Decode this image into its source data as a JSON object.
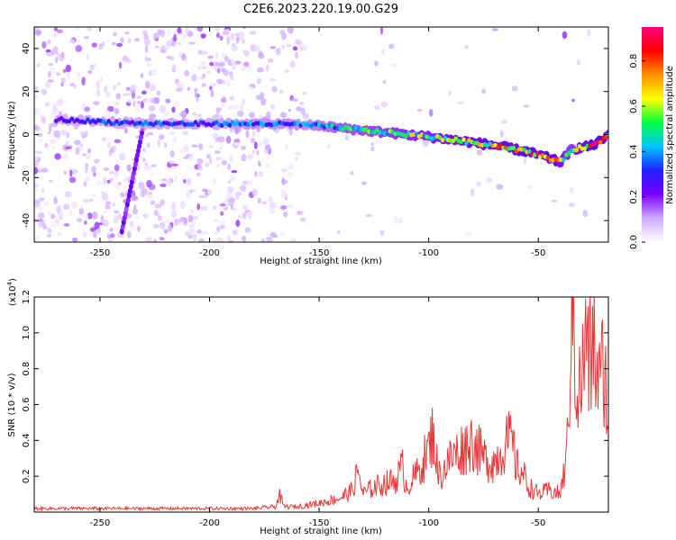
{
  "title": "C2E6.2023.220.19.00.G29",
  "chart_data": [
    {
      "type": "heatmap",
      "xlabel": "Height of straight line (km)",
      "ylabel": "Frequency (Hz)",
      "xlim": [
        -280,
        -18
      ],
      "ylim": [
        -50,
        50
      ],
      "xticks": [
        -250,
        -200,
        -150,
        -100,
        -50
      ],
      "yticks": [
        -40,
        -20,
        0,
        20,
        40
      ],
      "colorbar": {
        "label": "Normalized spectral amplitude",
        "range": [
          0.0,
          0.95
        ],
        "ticks": [
          0.0,
          0.2,
          0.4,
          0.6,
          0.8
        ],
        "colors": [
          "#ffffff",
          "#cfa8ff",
          "#7a00ff",
          "#2020ff",
          "#00c8ff",
          "#00ff40",
          "#ffff00",
          "#ff9000",
          "#ff0000",
          "#ff0080"
        ]
      },
      "ridge": {
        "x": [
          -270,
          -250,
          -225,
          -200,
          -175,
          -155,
          -140,
          -120,
          -100,
          -85,
          -70,
          -55,
          -45,
          -40,
          -35,
          -30,
          -25,
          -20,
          -18
        ],
        "freq_hz": [
          7,
          6,
          5,
          5,
          5,
          4.5,
          3,
          1,
          -1,
          -3,
          -5,
          -8,
          -11,
          -13,
          -7,
          -6,
          -5,
          -2,
          0
        ],
        "amplitude": [
          0.25,
          0.3,
          0.3,
          0.3,
          0.35,
          0.35,
          0.45,
          0.5,
          0.55,
          0.6,
          0.65,
          0.7,
          0.75,
          0.6,
          0.5,
          0.6,
          0.8,
          0.7,
          0.6
        ]
      },
      "diagonal_streak": {
        "x": [
          -240,
          -230
        ],
        "freq_hz": [
          -45,
          5
        ]
      }
    },
    {
      "type": "line",
      "xlabel": "Height of straight line (km)",
      "ylabel": "SNR (10 * v/v)",
      "y_multiplier": "(x10",
      "y_exponent": "4",
      "xlim": [
        -280,
        -18
      ],
      "ylim": [
        0.0,
        1.2
      ],
      "xticks": [
        -250,
        -200,
        -150,
        -100,
        -50
      ],
      "yticks": [
        0.2,
        0.4,
        0.6,
        0.8,
        1.0,
        1.2
      ],
      "color": "#e83a3a",
      "series": {
        "x": [
          -280,
          -260,
          -240,
          -220,
          -200,
          -180,
          -170,
          -168,
          -166,
          -160,
          -150,
          -140,
          -135,
          -132,
          -130,
          -125,
          -120,
          -115,
          -112,
          -110,
          -105,
          -100,
          -98,
          -96,
          -95,
          -90,
          -85,
          -80,
          -75,
          -70,
          -65,
          -62,
          -60,
          -57,
          -55,
          -50,
          -45,
          -40,
          -37,
          -36,
          -35,
          -34,
          -33,
          -32,
          -30,
          -28,
          -27,
          -25,
          -22,
          -20,
          -18
        ],
        "y": [
          0.02,
          0.02,
          0.02,
          0.02,
          0.02,
          0.02,
          0.03,
          0.09,
          0.03,
          0.03,
          0.05,
          0.08,
          0.12,
          0.23,
          0.1,
          0.14,
          0.16,
          0.18,
          0.25,
          0.14,
          0.22,
          0.35,
          0.45,
          0.25,
          0.2,
          0.3,
          0.35,
          0.4,
          0.3,
          0.28,
          0.38,
          0.4,
          0.25,
          0.22,
          0.15,
          0.1,
          0.12,
          0.1,
          0.3,
          0.7,
          0.9,
          1.2,
          0.8,
          0.65,
          0.75,
          1.0,
          0.8,
          0.95,
          0.7,
          0.85,
          0.5
        ]
      }
    }
  ]
}
